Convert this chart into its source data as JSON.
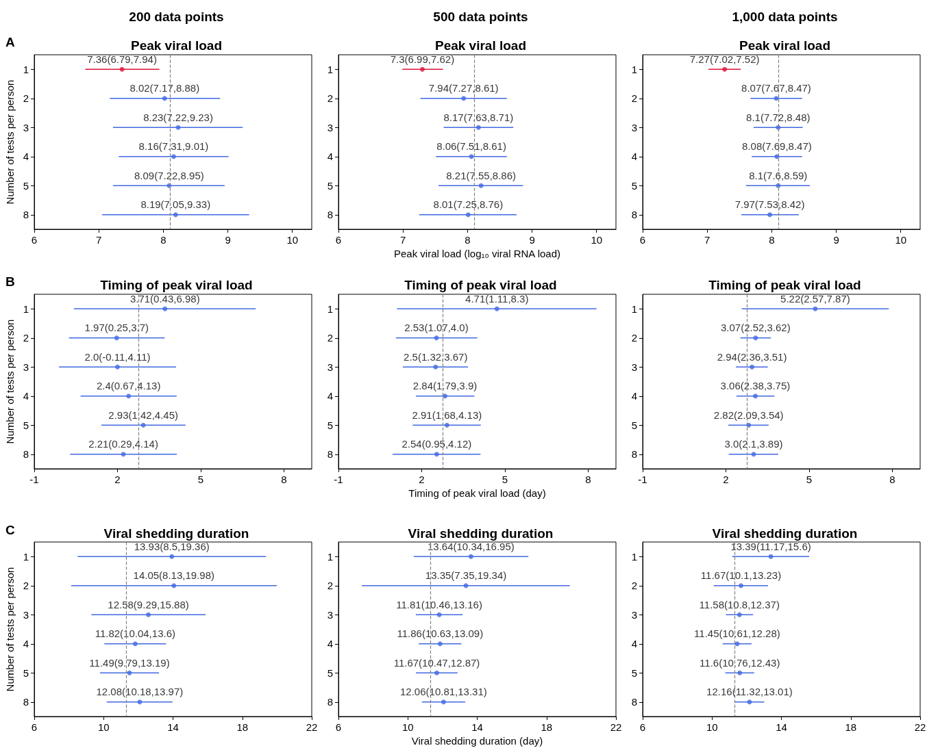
{
  "chart_data": [
    {
      "type": "scatter",
      "orientation": "horizontal",
      "marker": "circle",
      "subtitle": "200 data points",
      "title": "Peak viral load",
      "annotations": [
        "A"
      ],
      "ylabel": "Number of tests per person",
      "categories": [
        "1",
        "2",
        "3",
        "4",
        "5",
        "8"
      ],
      "values": [
        7.36,
        8.02,
        8.23,
        8.16,
        8.09,
        8.19
      ],
      "errors": [
        [
          6.79,
          7.94
        ],
        [
          7.17,
          8.88
        ],
        [
          7.22,
          9.23
        ],
        [
          7.31,
          9.01
        ],
        [
          7.22,
          8.95
        ],
        [
          7.05,
          9.33
        ]
      ],
      "value_labels": [
        "7.36(6.79,7.94)",
        "8.02(7.17,8.88)",
        "8.23(7.22,9.23)",
        "8.16(7.31,9.01)",
        "8.09(7.22,8.95)",
        "8.19(7.05,9.33)"
      ],
      "colors": [
        "#dc143c",
        "#4169e1",
        "#4169e1",
        "#4169e1",
        "#4169e1",
        "#4169e1"
      ],
      "xlim": [
        6,
        10.3
      ],
      "xticks": [
        6,
        7,
        8,
        9,
        10
      ],
      "ref_lines": [
        {
          "axis": "x",
          "value": 8.1,
          "color": "#808080",
          "line_style": "dashed"
        }
      ]
    },
    {
      "type": "scatter",
      "orientation": "horizontal",
      "marker": "circle",
      "subtitle": "500 data points",
      "title": "Peak viral load",
      "xlabel": "Peak viral load (log₁₀ viral RNA load)",
      "categories": [
        "1",
        "2",
        "3",
        "4",
        "5",
        "8"
      ],
      "values": [
        7.3,
        7.94,
        8.17,
        8.06,
        8.21,
        8.01
      ],
      "errors": [
        [
          6.99,
          7.62
        ],
        [
          7.27,
          8.61
        ],
        [
          7.63,
          8.71
        ],
        [
          7.51,
          8.61
        ],
        [
          7.55,
          8.86
        ],
        [
          7.25,
          8.76
        ]
      ],
      "value_labels": [
        "7.3(6.99,7.62)",
        "7.94(7.27,8.61)",
        "8.17(7.63,8.71)",
        "8.06(7.51,8.61)",
        "8.21(7.55,8.86)",
        "8.01(7.25,8.76)"
      ],
      "colors": [
        "#dc143c",
        "#4169e1",
        "#4169e1",
        "#4169e1",
        "#4169e1",
        "#4169e1"
      ],
      "xlim": [
        6,
        10.3
      ],
      "xticks": [
        6,
        7,
        8,
        9,
        10
      ],
      "ref_lines": [
        {
          "axis": "x",
          "value": 8.1,
          "color": "#808080",
          "line_style": "dashed"
        }
      ]
    },
    {
      "type": "scatter",
      "orientation": "horizontal",
      "marker": "circle",
      "subtitle": "1,000 data points",
      "title": "Peak viral load",
      "categories": [
        "1",
        "2",
        "3",
        "4",
        "5",
        "8"
      ],
      "values": [
        7.27,
        8.07,
        8.1,
        8.08,
        8.1,
        7.97
      ],
      "errors": [
        [
          7.02,
          7.52
        ],
        [
          7.67,
          8.47
        ],
        [
          7.72,
          8.48
        ],
        [
          7.69,
          8.47
        ],
        [
          7.6,
          8.59
        ],
        [
          7.53,
          8.42
        ]
      ],
      "value_labels": [
        "7.27(7.02,7.52)",
        "8.07(7.67,8.47)",
        "8.1(7.72,8.48)",
        "8.08(7.69,8.47)",
        "8.1(7.6,8.59)",
        "7.97(7.53,8.42)"
      ],
      "colors": [
        "#dc143c",
        "#4169e1",
        "#4169e1",
        "#4169e1",
        "#4169e1",
        "#4169e1"
      ],
      "xlim": [
        6,
        10.3
      ],
      "xticks": [
        6,
        7,
        8,
        9,
        10
      ],
      "ref_lines": [
        {
          "axis": "x",
          "value": 8.1,
          "color": "#808080",
          "line_style": "dashed"
        }
      ]
    },
    {
      "type": "scatter",
      "orientation": "horizontal",
      "marker": "circle",
      "title": "Timing of peak viral load",
      "annotations": [
        "B"
      ],
      "ylabel": "Number of tests per person",
      "categories": [
        "1",
        "2",
        "3",
        "4",
        "5",
        "8"
      ],
      "values": [
        3.71,
        1.97,
        2.0,
        2.4,
        2.93,
        2.21
      ],
      "errors": [
        [
          0.43,
          6.98
        ],
        [
          0.25,
          3.7
        ],
        [
          -0.11,
          4.11
        ],
        [
          0.67,
          4.13
        ],
        [
          1.42,
          4.45
        ],
        [
          0.29,
          4.14
        ]
      ],
      "value_labels": [
        "3.71(0.43,6.98)",
        "1.97(0.25,3.7)",
        "2.0(-0.11,4.11)",
        "2.4(0.67,4.13)",
        "2.93(1.42,4.45)",
        "2.21(0.29,4.14)"
      ],
      "colors": [
        "#4169e1",
        "#4169e1",
        "#4169e1",
        "#4169e1",
        "#4169e1",
        "#4169e1"
      ],
      "xlim": [
        -1,
        9
      ],
      "xticks": [
        -1,
        2,
        5,
        8
      ],
      "ref_lines": [
        {
          "axis": "x",
          "value": 2.75,
          "color": "#808080",
          "line_style": "dashed"
        }
      ]
    },
    {
      "type": "scatter",
      "orientation": "horizontal",
      "marker": "circle",
      "title": "Timing of peak viral load",
      "xlabel": "Timing of peak viral load (day)",
      "categories": [
        "1",
        "2",
        "3",
        "4",
        "5",
        "8"
      ],
      "values": [
        4.71,
        2.53,
        2.5,
        2.84,
        2.91,
        2.54
      ],
      "errors": [
        [
          1.11,
          8.3
        ],
        [
          1.07,
          4.0
        ],
        [
          1.32,
          3.67
        ],
        [
          1.79,
          3.9
        ],
        [
          1.68,
          4.13
        ],
        [
          0.95,
          4.12
        ]
      ],
      "value_labels": [
        "4.71(1.11,8.3)",
        "2.53(1.07,4.0)",
        "2.5(1.32,3.67)",
        "2.84(1.79,3.9)",
        "2.91(1.68,4.13)",
        "2.54(0.95,4.12)"
      ],
      "colors": [
        "#4169e1",
        "#4169e1",
        "#4169e1",
        "#4169e1",
        "#4169e1",
        "#4169e1"
      ],
      "xlim": [
        -1,
        9
      ],
      "xticks": [
        -1,
        2,
        5,
        8
      ],
      "ref_lines": [
        {
          "axis": "x",
          "value": 2.75,
          "color": "#808080",
          "line_style": "dashed"
        }
      ]
    },
    {
      "type": "scatter",
      "orientation": "horizontal",
      "marker": "circle",
      "title": "Timing of peak viral load",
      "categories": [
        "1",
        "2",
        "3",
        "4",
        "5",
        "8"
      ],
      "values": [
        5.22,
        3.07,
        2.94,
        3.06,
        2.82,
        3.0
      ],
      "errors": [
        [
          2.57,
          7.87
        ],
        [
          2.52,
          3.62
        ],
        [
          2.36,
          3.51
        ],
        [
          2.38,
          3.75
        ],
        [
          2.09,
          3.54
        ],
        [
          2.1,
          3.89
        ]
      ],
      "value_labels": [
        "5.22(2.57,7.87)",
        "3.07(2.52,3.62)",
        "2.94(2.36,3.51)",
        "3.06(2.38,3.75)",
        "2.82(2.09,3.54)",
        "3.0(2.1,3.89)"
      ],
      "colors": [
        "#4169e1",
        "#4169e1",
        "#4169e1",
        "#4169e1",
        "#4169e1",
        "#4169e1"
      ],
      "xlim": [
        -1,
        9
      ],
      "xticks": [
        -1,
        2,
        5,
        8
      ],
      "ref_lines": [
        {
          "axis": "x",
          "value": 2.75,
          "color": "#808080",
          "line_style": "dashed"
        }
      ]
    },
    {
      "type": "scatter",
      "orientation": "horizontal",
      "marker": "circle",
      "title": "Viral shedding duration",
      "annotations": [
        "C"
      ],
      "ylabel": "Number of tests per person",
      "categories": [
        "1",
        "2",
        "3",
        "4",
        "5",
        "8"
      ],
      "values": [
        13.93,
        14.05,
        12.58,
        11.82,
        11.49,
        12.08
      ],
      "errors": [
        [
          8.5,
          19.36
        ],
        [
          8.13,
          19.98
        ],
        [
          9.29,
          15.88
        ],
        [
          10.04,
          13.6
        ],
        [
          9.79,
          13.19
        ],
        [
          10.18,
          13.97
        ]
      ],
      "value_labels": [
        "13.93(8.5,19.36)",
        "14.05(8.13,19.98)",
        "12.58(9.29,15.88)",
        "11.82(10.04,13.6)",
        "11.49(9.79,13.19)",
        "12.08(10.18,13.97)"
      ],
      "colors": [
        "#4169e1",
        "#4169e1",
        "#4169e1",
        "#4169e1",
        "#4169e1",
        "#4169e1"
      ],
      "xlim": [
        6,
        22
      ],
      "xticks": [
        6,
        10,
        14,
        18,
        22
      ],
      "ref_lines": [
        {
          "axis": "x",
          "value": 11.3,
          "color": "#808080",
          "line_style": "dashed"
        }
      ]
    },
    {
      "type": "scatter",
      "orientation": "horizontal",
      "marker": "circle",
      "title": "Viral shedding duration",
      "xlabel": "Viral shedding duration (day)",
      "categories": [
        "1",
        "2",
        "3",
        "4",
        "5",
        "8"
      ],
      "values": [
        13.64,
        13.35,
        11.81,
        11.86,
        11.67,
        12.06
      ],
      "errors": [
        [
          10.34,
          16.95
        ],
        [
          7.35,
          19.34
        ],
        [
          10.46,
          13.16
        ],
        [
          10.63,
          13.09
        ],
        [
          10.47,
          12.87
        ],
        [
          10.81,
          13.31
        ]
      ],
      "value_labels": [
        "13.64(10.34,16.95)",
        "13.35(7.35,19.34)",
        "11.81(10.46,13.16)",
        "11.86(10.63,13.09)",
        "11.67(10.47,12.87)",
        "12.06(10.81,13.31)"
      ],
      "colors": [
        "#4169e1",
        "#4169e1",
        "#4169e1",
        "#4169e1",
        "#4169e1",
        "#4169e1"
      ],
      "xlim": [
        6,
        22
      ],
      "xticks": [
        6,
        10,
        14,
        18,
        22
      ],
      "ref_lines": [
        {
          "axis": "x",
          "value": 11.3,
          "color": "#808080",
          "line_style": "dashed"
        }
      ]
    },
    {
      "type": "scatter",
      "orientation": "horizontal",
      "marker": "circle",
      "title": "Viral shedding duration",
      "categories": [
        "1",
        "2",
        "3",
        "4",
        "5",
        "8"
      ],
      "values": [
        13.39,
        11.67,
        11.58,
        11.45,
        11.6,
        12.16
      ],
      "errors": [
        [
          11.17,
          15.6
        ],
        [
          10.1,
          13.23
        ],
        [
          10.8,
          12.37
        ],
        [
          10.61,
          12.28
        ],
        [
          10.76,
          12.43
        ],
        [
          11.32,
          13.01
        ]
      ],
      "value_labels": [
        "13.39(11.17,15.6)",
        "11.67(10.1,13.23)",
        "11.58(10.8,12.37)",
        "11.45(10.61,12.28)",
        "11.6(10.76,12.43)",
        "12.16(11.32,13.01)"
      ],
      "colors": [
        "#4169e1",
        "#4169e1",
        "#4169e1",
        "#4169e1",
        "#4169e1",
        "#4169e1"
      ],
      "xlim": [
        6,
        22
      ],
      "xticks": [
        6,
        10,
        14,
        18,
        22
      ],
      "ref_lines": [
        {
          "axis": "x",
          "value": 11.3,
          "color": "#808080",
          "line_style": "dashed"
        }
      ]
    }
  ]
}
